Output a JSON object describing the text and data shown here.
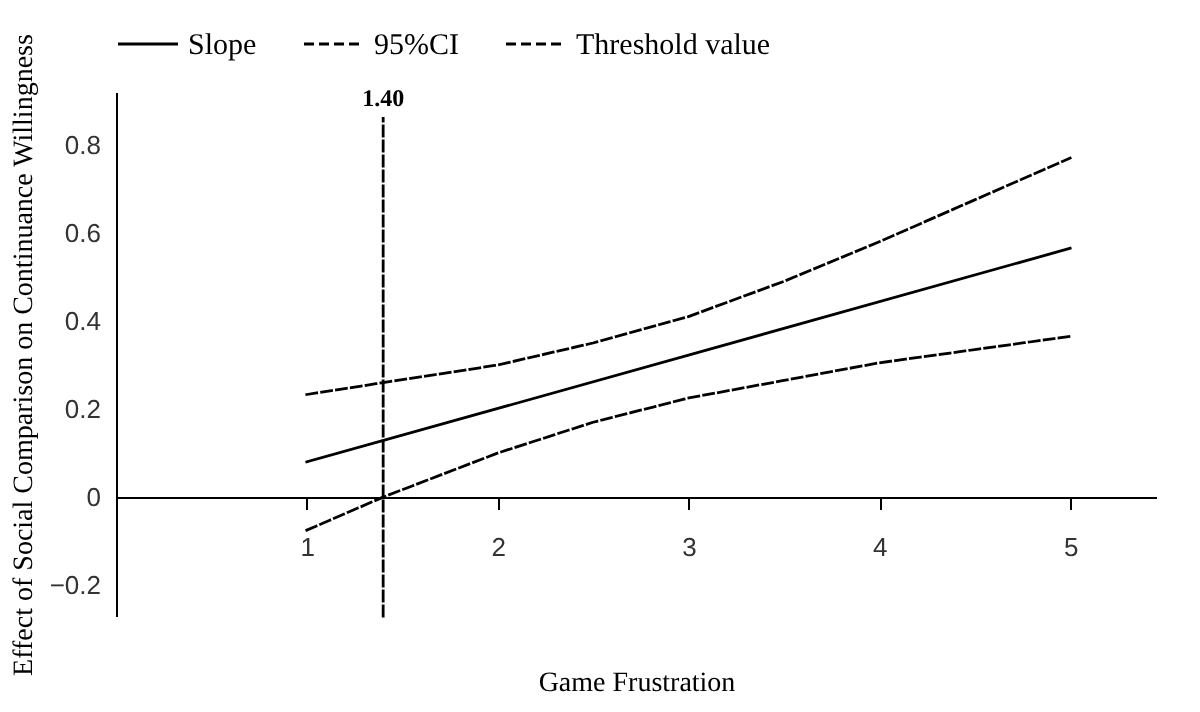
{
  "chart_data": {
    "type": "line",
    "xlabel": "Game Frustration",
    "ylabel": "Effect of Social Comparison on Continuance Willingness",
    "xlim": [
      0,
      5.45
    ],
    "ylim": [
      -0.27,
      0.92
    ],
    "xticks": [
      1,
      2,
      3,
      4,
      5
    ],
    "yticks": [
      -0.2,
      0,
      0.2,
      0.4,
      0.6,
      0.8
    ],
    "grid": false,
    "legend": "top",
    "marker": "none",
    "series": [
      {
        "name": "Slope",
        "color": "#000000",
        "line_style": "solid",
        "x": [
          1,
          5
        ],
        "values": [
          0.08,
          0.565
        ]
      },
      {
        "name": "95%CI",
        "color": "#000000",
        "line_style": "dashed",
        "x": [
          1,
          1.4,
          2,
          2.5,
          3,
          3.5,
          4,
          4.5,
          5
        ],
        "values": [
          0.233,
          0.26,
          0.3,
          0.35,
          0.41,
          0.49,
          0.58,
          0.675,
          0.77
        ]
      },
      {
        "color": "#000000",
        "line_style": "dashed",
        "x": [
          1,
          1.4,
          2,
          2.5,
          3,
          3.5,
          4,
          4.5,
          5
        ],
        "values": [
          -0.075,
          0,
          0.1,
          0.17,
          0.225,
          0.265,
          0.305,
          0.335,
          0.365
        ]
      },
      {
        "name": "Threshold value",
        "color": "#000000",
        "line_style": "dashed",
        "x": [
          1.4,
          1.4
        ],
        "values": [
          -0.27,
          0.86
        ]
      }
    ],
    "annotations": [
      {
        "text": "1.40",
        "x": 1.4,
        "y": 0.86
      }
    ]
  }
}
